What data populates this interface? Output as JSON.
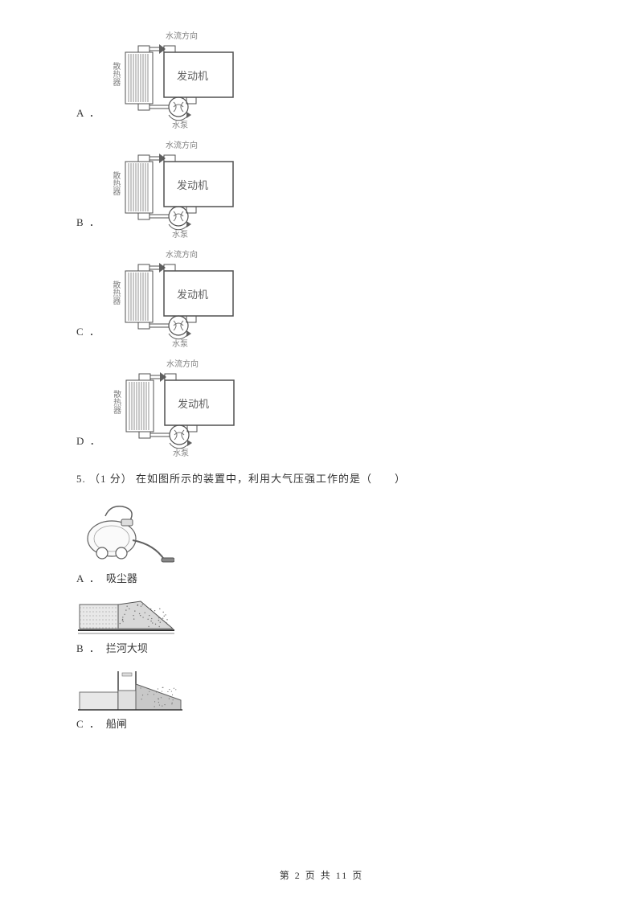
{
  "options_engine": [
    {
      "letter": "A ．",
      "flow_top_dir": "right",
      "pump_arrow": "cw"
    },
    {
      "letter": "B ．",
      "flow_top_dir": "right",
      "pump_arrow": "ccw"
    },
    {
      "letter": "C ．",
      "flow_top_dir": "right",
      "pump_arrow": "down"
    },
    {
      "letter": "D ．",
      "flow_top_dir": "right",
      "pump_arrow": "up"
    }
  ],
  "engine_labels": {
    "flow_dir": "水流方向",
    "radiator": "散热器",
    "engine": "发动机",
    "pump": "水泵"
  },
  "question5": {
    "number": "5.",
    "points": "（1 分）",
    "text": "在如图所示的装置中，利用大气压强工作的是（　　）"
  },
  "q5_options": [
    {
      "letter": "A ．",
      "label": "吸尘器",
      "img": "vacuum"
    },
    {
      "letter": "B ．",
      "label": "拦河大坝",
      "img": "dam"
    },
    {
      "letter": "C ．",
      "label": "船闸",
      "img": "lock"
    }
  ],
  "footer": {
    "prefix": "第 ",
    "current": "2",
    "mid": " 页 共 ",
    "total": "11",
    "suffix": " 页"
  },
  "colors": {
    "text": "#333333",
    "diagram_gray": "#808080",
    "bg": "#ffffff"
  }
}
